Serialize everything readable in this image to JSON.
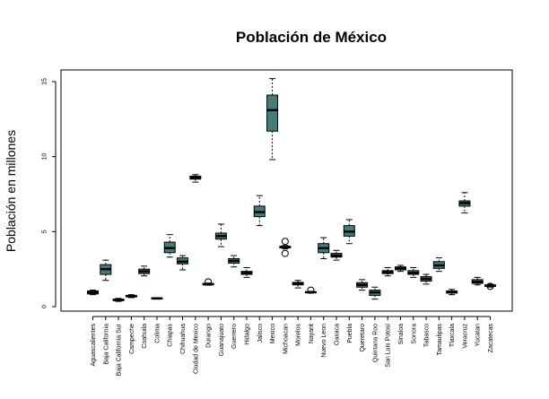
{
  "chart_data": {
    "type": "box",
    "title": "Población de México",
    "ylabel": "Población en millones",
    "xlabel": "",
    "ylim": [
      0,
      15.5
    ],
    "yticks": [
      0,
      5,
      10,
      15
    ],
    "grid": false,
    "box_color": "#477a7a",
    "categories": [
      "Aguascalientes",
      "Baja California",
      "Baja California Sur",
      "Campeche",
      "Coahuila",
      "Colima",
      "Chiapas",
      "Chihuahua",
      "Ciudad de Mexico",
      "Durango",
      "Guanajuato",
      "Guerrero",
      "Hidalgo",
      "Jalisco",
      "Mexico",
      "Michoacan",
      "Morelos",
      "Nayarit",
      "Nuevo Leon",
      "Oaxaca",
      "Puebla",
      "Queretaro",
      "Quintana Roo",
      "San Luis Potosi",
      "Sinaloa",
      "Sonora",
      "Tabasco",
      "Tamaulipas",
      "Tlaxcala",
      "Veracruz",
      "Yucatan",
      "Zacatecas"
    ],
    "boxes": [
      {
        "min": 0.8,
        "q1": 0.85,
        "median": 0.95,
        "q3": 1.05,
        "max": 1.1,
        "outliers": []
      },
      {
        "min": 1.75,
        "q1": 2.15,
        "median": 2.5,
        "q3": 2.8,
        "max": 3.1,
        "outliers": []
      },
      {
        "min": 0.35,
        "q1": 0.4,
        "median": 0.45,
        "q3": 0.5,
        "max": 0.55,
        "outliers": []
      },
      {
        "min": 0.6,
        "q1": 0.65,
        "median": 0.7,
        "q3": 0.75,
        "max": 0.8,
        "outliers": []
      },
      {
        "min": 2.05,
        "q1": 2.2,
        "median": 2.35,
        "q3": 2.5,
        "max": 2.7,
        "outliers": []
      },
      {
        "min": 0.5,
        "q1": 0.52,
        "median": 0.55,
        "q3": 0.58,
        "max": 0.6,
        "outliers": []
      },
      {
        "min": 3.3,
        "q1": 3.6,
        "median": 3.9,
        "q3": 4.3,
        "max": 4.8,
        "outliers": []
      },
      {
        "min": 2.45,
        "q1": 2.85,
        "median": 3.0,
        "q3": 3.25,
        "max": 3.4,
        "outliers": []
      },
      {
        "min": 8.3,
        "q1": 8.5,
        "median": 8.6,
        "q3": 8.7,
        "max": 8.8,
        "outliers": []
      },
      {
        "min": 1.43,
        "q1": 1.45,
        "median": 1.5,
        "q3": 1.55,
        "max": 1.57,
        "outliers": [
          1.65
        ]
      },
      {
        "min": 4.0,
        "q1": 4.5,
        "median": 4.7,
        "q3": 4.9,
        "max": 5.5,
        "outliers": []
      },
      {
        "min": 2.65,
        "q1": 2.9,
        "median": 3.05,
        "q3": 3.2,
        "max": 3.4,
        "outliers": []
      },
      {
        "min": 1.95,
        "q1": 2.15,
        "median": 2.25,
        "q3": 2.35,
        "max": 2.6,
        "outliers": []
      },
      {
        "min": 5.4,
        "q1": 6.0,
        "median": 6.3,
        "q3": 6.7,
        "max": 7.4,
        "outliers": []
      },
      {
        "min": 9.8,
        "q1": 11.7,
        "median": 13.1,
        "q3": 14.1,
        "max": 15.2,
        "outliers": []
      },
      {
        "min": 3.85,
        "q1": 3.92,
        "median": 3.97,
        "q3": 4.02,
        "max": 4.08,
        "outliers": [
          4.35,
          3.55
        ]
      },
      {
        "min": 1.25,
        "q1": 1.45,
        "median": 1.55,
        "q3": 1.62,
        "max": 1.75,
        "outliers": []
      },
      {
        "min": 0.9,
        "q1": 0.93,
        "median": 0.96,
        "q3": 0.99,
        "max": 1.02,
        "outliers": [
          1.1
        ]
      },
      {
        "min": 3.2,
        "q1": 3.6,
        "median": 3.9,
        "q3": 4.2,
        "max": 4.6,
        "outliers": []
      },
      {
        "min": 3.1,
        "q1": 3.3,
        "median": 3.4,
        "q3": 3.55,
        "max": 3.75,
        "outliers": []
      },
      {
        "min": 4.2,
        "q1": 4.7,
        "median": 5.0,
        "q3": 5.4,
        "max": 5.8,
        "outliers": []
      },
      {
        "min": 1.1,
        "q1": 1.3,
        "median": 1.45,
        "q3": 1.6,
        "max": 1.8,
        "outliers": []
      },
      {
        "min": 0.5,
        "q1": 0.75,
        "median": 0.95,
        "q3": 1.1,
        "max": 1.3,
        "outliers": []
      },
      {
        "min": 2.05,
        "q1": 2.2,
        "median": 2.3,
        "q3": 2.4,
        "max": 2.6,
        "outliers": []
      },
      {
        "min": 2.35,
        "q1": 2.45,
        "median": 2.55,
        "q3": 2.65,
        "max": 2.75,
        "outliers": []
      },
      {
        "min": 1.95,
        "q1": 2.15,
        "median": 2.25,
        "q3": 2.4,
        "max": 2.6,
        "outliers": []
      },
      {
        "min": 1.5,
        "q1": 1.7,
        "median": 1.85,
        "q3": 2.0,
        "max": 2.15,
        "outliers": []
      },
      {
        "min": 2.35,
        "q1": 2.55,
        "median": 2.75,
        "q3": 3.0,
        "max": 3.25,
        "outliers": []
      },
      {
        "min": 0.8,
        "q1": 0.9,
        "median": 0.97,
        "q3": 1.05,
        "max": 1.15,
        "outliers": []
      },
      {
        "min": 6.25,
        "q1": 6.7,
        "median": 6.9,
        "q3": 7.05,
        "max": 7.6,
        "outliers": []
      },
      {
        "min": 1.45,
        "q1": 1.55,
        "median": 1.65,
        "q3": 1.8,
        "max": 1.95,
        "outliers": []
      },
      {
        "min": 1.3,
        "q1": 1.35,
        "median": 1.4,
        "q3": 1.45,
        "max": 1.5,
        "outliers": [
          1.35
        ]
      }
    ]
  }
}
